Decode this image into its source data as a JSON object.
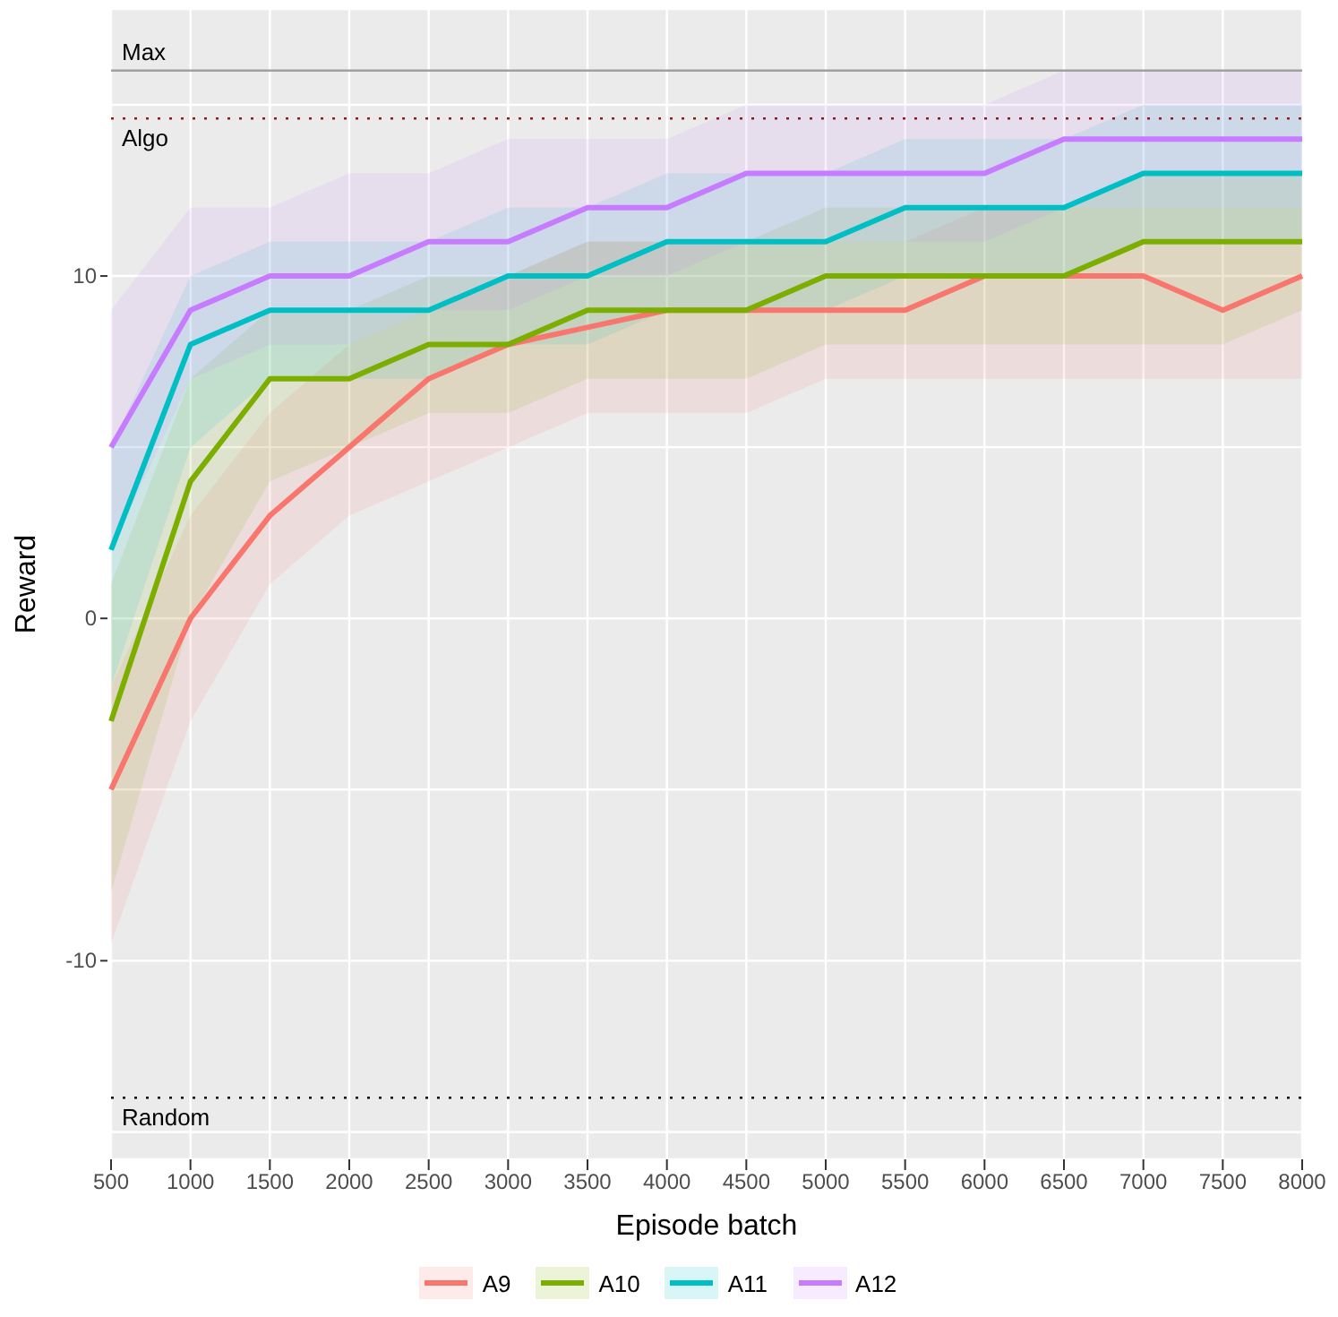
{
  "chart_data": {
    "type": "line",
    "xlabel": "Episode batch",
    "ylabel": "Reward",
    "categories": [
      "500",
      "1000",
      "1500",
      "2000",
      "2500",
      "3000",
      "3500",
      "4000",
      "4500",
      "5000",
      "5500",
      "6000",
      "6500",
      "7000",
      "7500",
      "8000"
    ],
    "ylim": [
      -15.8,
      17.8
    ],
    "yticks": [
      {
        "value": -15,
        "label": null
      },
      -10,
      {
        "value": -5,
        "label": null
      },
      0,
      {
        "value": 5,
        "label": null
      },
      10,
      {
        "value": 15,
        "label": null
      }
    ],
    "grid": true,
    "legend": "bottom",
    "line_style": "solid",
    "series": [
      {
        "name": "A9",
        "color": "#f8766d",
        "values": [
          -5,
          0,
          3,
          5,
          7,
          8,
          8.5,
          9,
          9,
          9,
          9,
          10,
          10,
          10,
          9,
          10
        ],
        "lower": [
          -9.5,
          -3,
          1,
          3,
          4,
          5,
          6,
          6,
          6,
          7,
          7,
          7,
          7,
          7,
          7,
          7
        ],
        "upper": [
          -2,
          3,
          6,
          8,
          9,
          10,
          11,
          11,
          11,
          11,
          11,
          12,
          12,
          12,
          12,
          12
        ]
      },
      {
        "name": "A10",
        "color": "#7cae00",
        "values": [
          -3,
          4,
          7,
          7,
          8,
          8,
          9,
          9,
          9,
          10,
          10,
          10,
          10,
          11,
          11,
          11
        ],
        "lower": [
          -8,
          0,
          4,
          5,
          6,
          6,
          7,
          7,
          7,
          8,
          8,
          8,
          8,
          8,
          8,
          9
        ],
        "upper": [
          1,
          7,
          9,
          9,
          10,
          10,
          11,
          11,
          11,
          12,
          12,
          12,
          12,
          13,
          13,
          13
        ]
      },
      {
        "name": "A11",
        "color": "#00bfc4",
        "values": [
          2,
          8,
          9,
          9,
          9,
          10,
          10,
          11,
          11,
          11,
          12,
          12,
          12,
          13,
          13,
          13
        ],
        "lower": [
          -2,
          5,
          7,
          7,
          7,
          8,
          8,
          9,
          9,
          9,
          10,
          10,
          10,
          11,
          11,
          11
        ],
        "upper": [
          5,
          10,
          11,
          11,
          11,
          12,
          12,
          13,
          13,
          13,
          14,
          14,
          14,
          15,
          15,
          15
        ]
      },
      {
        "name": "A12",
        "color": "#c77cff",
        "values": [
          5,
          9,
          10,
          10,
          11,
          11,
          12,
          12,
          13,
          13,
          13,
          13,
          14,
          14,
          14,
          14
        ],
        "lower": [
          2,
          7,
          8,
          8,
          9,
          9,
          10,
          10,
          11,
          11,
          11,
          11,
          12,
          12,
          12,
          12
        ],
        "upper": [
          9,
          12,
          12,
          13,
          13,
          14,
          14,
          14,
          15,
          15,
          15,
          15,
          16,
          16,
          16,
          16
        ]
      }
    ],
    "ref_lines": [
      {
        "axis": "y",
        "value": 16,
        "label": "Max",
        "color": "#a0a0a0",
        "line_style": "solid"
      },
      {
        "axis": "y",
        "value": 14.6,
        "label": "Algo",
        "color": "#8b1a1a",
        "line_style": "dotted"
      },
      {
        "axis": "y",
        "value": -14,
        "label": "Random",
        "color": "#000000",
        "line_style": "dotted"
      }
    ]
  }
}
